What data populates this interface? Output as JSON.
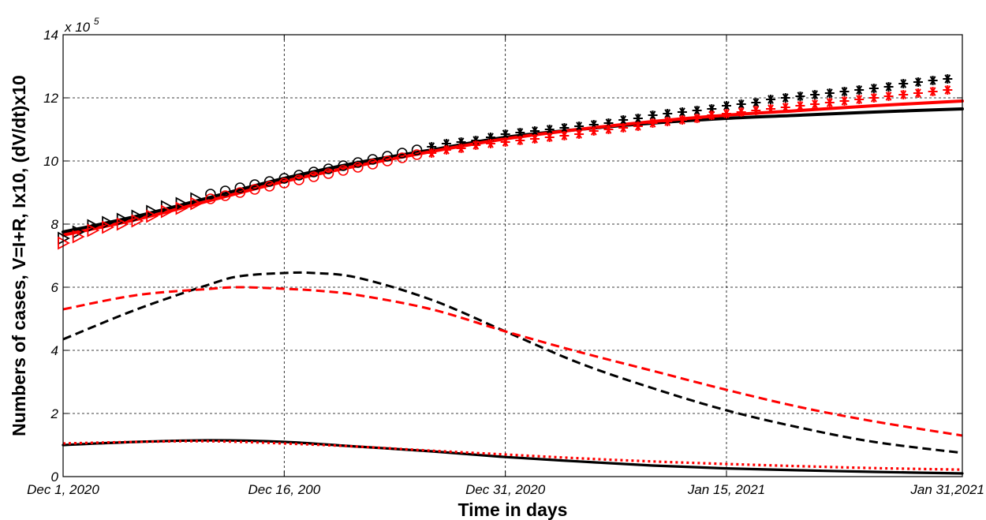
{
  "chart_data": {
    "type": "line",
    "xlabel": "Time in days",
    "ylabel": "Numbers of cases, V=I+R, Ix10, (dV/dt)x10",
    "y_exponent_base": "x 10",
    "y_exponent_power": "5",
    "xlim": [
      0,
      61
    ],
    "ylim": [
      0,
      14
    ],
    "x_ticks": [
      {
        "value": 0,
        "label": "Dec 1, 2020"
      },
      {
        "value": 15,
        "label": "Dec 16, 200"
      },
      {
        "value": 30,
        "label": "Dec 31, 2020"
      },
      {
        "value": 45,
        "label": "Jan 15, 2021"
      },
      {
        "value": 61,
        "label": "Jan 31,2021"
      }
    ],
    "y_ticks": [
      0,
      2,
      4,
      6,
      8,
      10,
      12,
      14
    ],
    "grid": true,
    "colors": {
      "black": "#000000",
      "red": "#ff0000"
    },
    "series": [
      {
        "color": "#000000",
        "style": "solid",
        "x": [
          0,
          5,
          10,
          15,
          20,
          25,
          30,
          35,
          40,
          45,
          50,
          55,
          61
        ],
        "y": [
          7.75,
          8.25,
          8.85,
          9.45,
          9.95,
          10.35,
          10.75,
          11.0,
          11.2,
          11.35,
          11.45,
          11.55,
          11.65
        ]
      },
      {
        "color": "#ff0000",
        "style": "solid",
        "x": [
          0,
          5,
          10,
          15,
          20,
          25,
          30,
          35,
          40,
          45,
          50,
          55,
          61
        ],
        "y": [
          7.65,
          8.15,
          8.75,
          9.35,
          9.85,
          10.3,
          10.7,
          11.0,
          11.25,
          11.45,
          11.6,
          11.75,
          11.9
        ]
      },
      {
        "color": "#000000",
        "style": "dashed",
        "x": [
          0,
          5,
          10,
          12,
          15,
          17,
          20,
          25,
          30,
          35,
          40,
          45,
          50,
          55,
          61
        ],
        "y": [
          4.35,
          5.3,
          6.1,
          6.35,
          6.45,
          6.45,
          6.3,
          5.6,
          4.6,
          3.6,
          2.8,
          2.1,
          1.55,
          1.1,
          0.75
        ]
      },
      {
        "color": "#ff0000",
        "style": "dashed",
        "x": [
          0,
          5,
          10,
          12,
          15,
          17,
          20,
          25,
          30,
          35,
          40,
          45,
          50,
          55,
          61
        ],
        "y": [
          5.3,
          5.75,
          5.95,
          6.0,
          5.95,
          5.9,
          5.75,
          5.3,
          4.6,
          3.95,
          3.35,
          2.75,
          2.2,
          1.75,
          1.3
        ]
      },
      {
        "color": "#000000",
        "style": "solid-thin",
        "x": [
          0,
          5,
          10,
          15,
          20,
          25,
          30,
          35,
          40,
          45,
          50,
          55,
          61
        ],
        "y": [
          1.0,
          1.1,
          1.15,
          1.1,
          0.95,
          0.8,
          0.62,
          0.48,
          0.35,
          0.26,
          0.2,
          0.15,
          0.1
        ]
      },
      {
        "color": "#ff0000",
        "style": "dotted",
        "x": [
          0,
          5,
          10,
          15,
          20,
          25,
          30,
          35,
          40,
          45,
          50,
          55,
          61
        ],
        "y": [
          1.05,
          1.1,
          1.12,
          1.05,
          0.95,
          0.82,
          0.7,
          0.58,
          0.48,
          0.4,
          0.33,
          0.27,
          0.22
        ]
      },
      {
        "color": "#000000",
        "style": "markers",
        "marker": "triangle-right",
        "x": [
          0,
          1,
          2,
          3,
          4,
          5,
          6,
          7,
          8,
          9
        ],
        "y": [
          7.55,
          7.75,
          7.95,
          8.05,
          8.15,
          8.25,
          8.4,
          8.55,
          8.65,
          8.8
        ]
      },
      {
        "color": "#ff0000",
        "style": "markers",
        "marker": "triangle-right",
        "x": [
          0,
          1,
          2,
          3,
          4,
          5,
          6,
          7,
          8,
          9
        ],
        "y": [
          7.4,
          7.6,
          7.8,
          7.9,
          8.0,
          8.1,
          8.25,
          8.4,
          8.5,
          8.65
        ]
      },
      {
        "color": "#000000",
        "style": "markers",
        "marker": "circle",
        "x": [
          10,
          11,
          12,
          13,
          14,
          15,
          16,
          17,
          18,
          19,
          20,
          21,
          22,
          23,
          24
        ],
        "y": [
          8.95,
          9.05,
          9.15,
          9.25,
          9.35,
          9.45,
          9.55,
          9.65,
          9.75,
          9.85,
          9.95,
          10.05,
          10.15,
          10.25,
          10.35
        ]
      },
      {
        "color": "#ff0000",
        "style": "markers",
        "marker": "circle",
        "x": [
          10,
          11,
          12,
          13,
          14,
          15,
          16,
          17,
          18,
          19,
          20,
          21,
          22,
          23,
          24
        ],
        "y": [
          8.8,
          8.9,
          9.0,
          9.1,
          9.2,
          9.3,
          9.4,
          9.5,
          9.6,
          9.7,
          9.8,
          9.9,
          10.0,
          10.1,
          10.2
        ]
      },
      {
        "color": "#000000",
        "style": "markers",
        "marker": "asterisk",
        "x": [
          25,
          26,
          27,
          28,
          29,
          30,
          31,
          32,
          33,
          34,
          35,
          36,
          37,
          38,
          39,
          40,
          41,
          42,
          43,
          44,
          45,
          46,
          47,
          48,
          49,
          50,
          51,
          52,
          53,
          54,
          55,
          56,
          57,
          58,
          59,
          60
        ],
        "y": [
          10.45,
          10.55,
          10.6,
          10.65,
          10.75,
          10.85,
          10.9,
          10.95,
          11.0,
          11.05,
          11.1,
          11.15,
          11.2,
          11.3,
          11.35,
          11.45,
          11.5,
          11.55,
          11.6,
          11.65,
          11.75,
          11.8,
          11.85,
          11.95,
          12.0,
          12.05,
          12.1,
          12.15,
          12.2,
          12.25,
          12.3,
          12.35,
          12.45,
          12.5,
          12.55,
          12.6
        ]
      },
      {
        "color": "#ff0000",
        "style": "markers",
        "marker": "asterisk",
        "x": [
          25,
          26,
          27,
          28,
          29,
          30,
          31,
          32,
          33,
          34,
          35,
          36,
          37,
          38,
          39,
          40,
          41,
          42,
          43,
          44,
          45,
          46,
          47,
          48,
          49,
          50,
          51,
          52,
          53,
          54,
          55,
          56,
          57,
          58,
          59,
          60
        ],
        "y": [
          10.25,
          10.35,
          10.4,
          10.5,
          10.55,
          10.6,
          10.65,
          10.7,
          10.75,
          10.8,
          10.85,
          10.95,
          11.0,
          11.05,
          11.1,
          11.2,
          11.25,
          11.3,
          11.35,
          11.45,
          11.5,
          11.55,
          11.6,
          11.65,
          11.7,
          11.75,
          11.8,
          11.85,
          11.9,
          11.95,
          12.0,
          12.05,
          12.1,
          12.15,
          12.2,
          12.25
        ]
      }
    ]
  }
}
